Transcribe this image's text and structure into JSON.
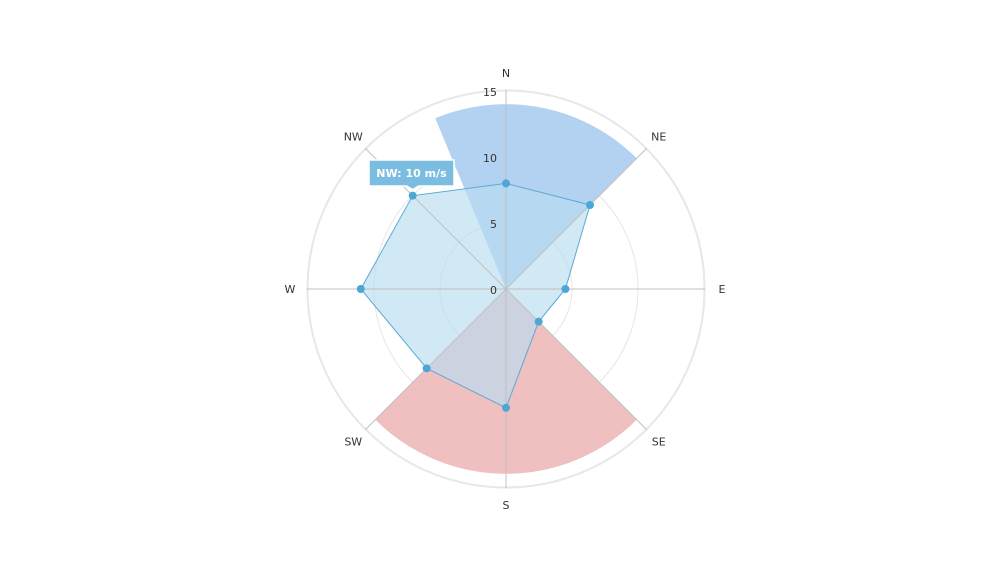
{
  "chart_data": {
    "type": "polar-radar",
    "directions": [
      "N",
      "NE",
      "E",
      "SE",
      "S",
      "SW",
      "W",
      "NW"
    ],
    "radial_ticks": [
      0,
      5,
      10,
      15
    ],
    "rmax": 15,
    "grid": true,
    "sector_bands": [
      {
        "from_deg": -22.5,
        "to_deg": 45,
        "value": 14,
        "color": "#b3d1f0"
      },
      {
        "from_deg": 135,
        "to_deg": 225,
        "value": 14,
        "color": "#f0bfbf"
      }
    ],
    "series": [
      {
        "type": "area",
        "values": [
          8,
          9,
          4.5,
          3.5,
          9,
          8.5,
          11,
          10
        ],
        "fill": "#b9dcf0",
        "stroke": "#5aaad6",
        "marker": "#4ea5d6"
      }
    ],
    "tooltip": {
      "direction": "NW",
      "text": "NW: 10 m/s",
      "background": "#7bbde0"
    }
  }
}
